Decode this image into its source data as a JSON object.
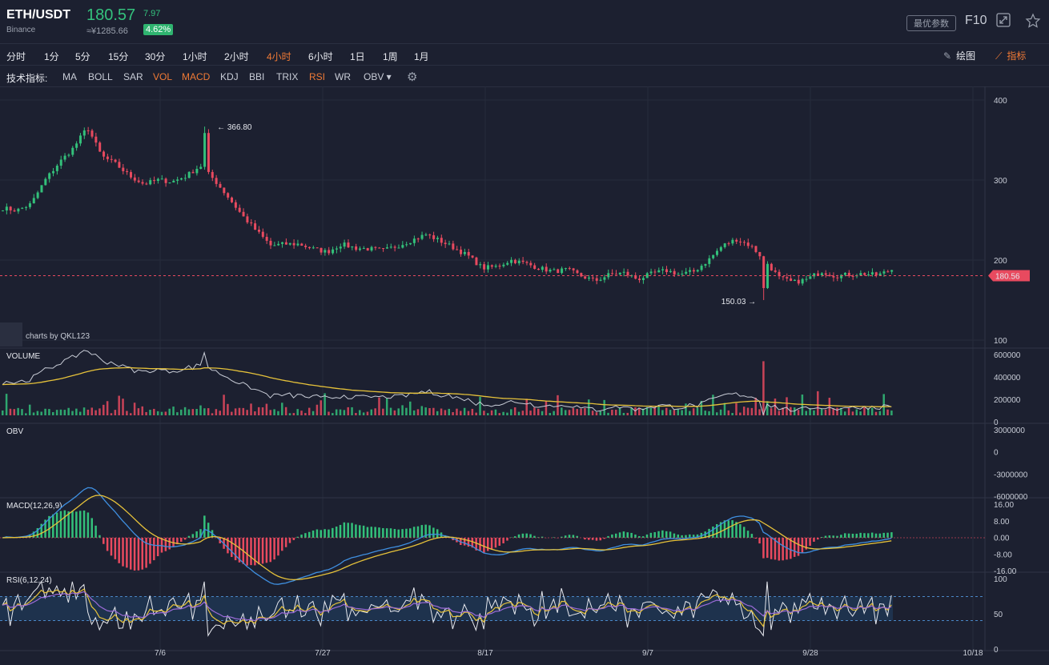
{
  "header": {
    "symbol": "ETH/USDT",
    "exchange": "Binance",
    "price": "180.57",
    "change": "7.97",
    "cny": "≈¥1285.66",
    "pct": "4.62%",
    "best_params": "最优参数",
    "f10": "F10",
    "expand_icon": "expand-icon",
    "star_icon": "star-icon"
  },
  "timeframes": [
    {
      "label": "分时",
      "active": false
    },
    {
      "label": "1分",
      "active": false
    },
    {
      "label": "5分",
      "active": false
    },
    {
      "label": "15分",
      "active": false
    },
    {
      "label": "30分",
      "active": false
    },
    {
      "label": "1小时",
      "active": false
    },
    {
      "label": "2小时",
      "active": false
    },
    {
      "label": "4小时",
      "active": true
    },
    {
      "label": "6小时",
      "active": false
    },
    {
      "label": "1日",
      "active": false
    },
    {
      "label": "1周",
      "active": false
    },
    {
      "label": "1月",
      "active": false
    }
  ],
  "tools": {
    "draw": "绘图",
    "indicator": "指标"
  },
  "indicators": {
    "label": "技术指标:",
    "items": [
      {
        "label": "MA",
        "active": false
      },
      {
        "label": "BOLL",
        "active": false
      },
      {
        "label": "SAR",
        "active": false
      },
      {
        "label": "VOL",
        "active": true
      },
      {
        "label": "MACD",
        "active": true
      },
      {
        "label": "KDJ",
        "active": false
      },
      {
        "label": "BBI",
        "active": false
      },
      {
        "label": "TRIX",
        "active": false
      },
      {
        "label": "RSI",
        "active": true
      },
      {
        "label": "WR",
        "active": false
      },
      {
        "label": "OBV ▾",
        "active": false
      }
    ]
  },
  "chart_data": {
    "type": "candlestick",
    "x_ticks": [
      "7/6",
      "7/27",
      "8/17",
      "9/7",
      "9/28",
      "10/18"
    ],
    "price_axis": [
      "400",
      "300",
      "200",
      "100"
    ],
    "ylim": [
      100,
      400
    ],
    "last_price": "180.56",
    "high": {
      "label": "366.80",
      "value": 366.8
    },
    "low": {
      "label": "150.03",
      "value": 150.03
    },
    "watermark": "charts by QKL123",
    "close_series": [
      265,
      262,
      270,
      300,
      322,
      340,
      366,
      330,
      320,
      305,
      295,
      300,
      298,
      305,
      318,
      300,
      278,
      255,
      236,
      218,
      220,
      220,
      214,
      210,
      220,
      215,
      214,
      212,
      218,
      225,
      232,
      224,
      215,
      205,
      190,
      192,
      200,
      196,
      190,
      186,
      188,
      180,
      174,
      182,
      184,
      176,
      183,
      187,
      182,
      186,
      200,
      218,
      226,
      218,
      200,
      178,
      172,
      176,
      186,
      180,
      182,
      183,
      181,
      188
    ],
    "panes": [
      {
        "name": "VOLUME",
        "axis": [
          "600000",
          "400000",
          "200000",
          "0"
        ],
        "range": [
          0,
          600000
        ]
      },
      {
        "name": "OBV",
        "axis": [
          "3000000",
          "0",
          "-3000000",
          "-6000000"
        ],
        "range": [
          -6000000,
          3000000
        ]
      },
      {
        "name": "MACD(12,26,9)",
        "axis": [
          "16.00",
          "8.00",
          "0.00",
          "-8.00",
          "-16.00"
        ],
        "range": [
          -16,
          16
        ]
      },
      {
        "name": "RSI(6,12,24)",
        "axis": [
          "100",
          "50",
          "0"
        ],
        "range": [
          0,
          100
        ],
        "bands": [
          30,
          70
        ]
      }
    ],
    "colors": {
      "up": "#33c07a",
      "down": "#e84a5f",
      "ma1": "#e6c23a",
      "ma2": "#3f8fe0",
      "ma3": "#9b6bd8",
      "obv": "#c8ccd6",
      "rsi1": "#e6e8ee"
    }
  }
}
